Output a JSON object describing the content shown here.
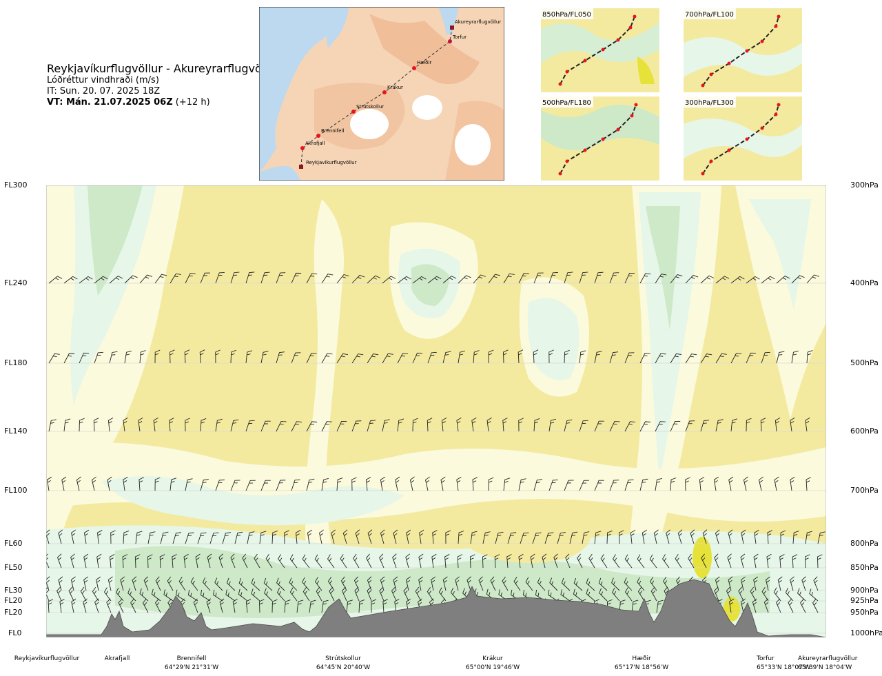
{
  "header": {
    "title": "Reykjavíkurflugvöllur - Akureyrarflugvöllur",
    "subtitle": "Lóðréttur vindhraði (m/s)",
    "it_line": "IT: Sun. 20. 07. 2025 18Z",
    "vt_bold": "VT: Mán. 21.07.2025 06Z",
    "vt_suffix": " (+12 h)"
  },
  "route_map": {
    "points": [
      {
        "name": "Akureyrarflugvöllur"
      },
      {
        "name": "Torfur"
      },
      {
        "name": "Hæðir"
      },
      {
        "name": "Krákur"
      },
      {
        "name": "Strútskollur"
      },
      {
        "name": "Brennifell"
      },
      {
        "name": "Akrafjall"
      },
      {
        "name": "Reykjavíkurflugvöllur"
      }
    ]
  },
  "mini_maps": [
    {
      "label": "850hPa/FL050"
    },
    {
      "label": "700hPa/FL100"
    },
    {
      "label": "500hPa/FL180"
    },
    {
      "label": "300hPa/FL300"
    }
  ],
  "levels_left": [
    {
      "label": "FL300"
    },
    {
      "label": "FL240"
    },
    {
      "label": "FL180"
    },
    {
      "label": "FL140"
    },
    {
      "label": "FL100"
    },
    {
      "label": "FL60"
    },
    {
      "label": "FL50"
    },
    {
      "label": "FL30"
    },
    {
      "label": "FL20"
    },
    {
      "label": "FL20"
    },
    {
      "label": "FL0"
    }
  ],
  "levels_right": [
    {
      "label": "300hPa"
    },
    {
      "label": "400hPa"
    },
    {
      "label": "500hPa"
    },
    {
      "label": "600hPa"
    },
    {
      "label": "700hPa"
    },
    {
      "label": "800hPa"
    },
    {
      "label": "850hPa"
    },
    {
      "label": "900hPa"
    },
    {
      "label": "925hPa"
    },
    {
      "label": "950hPa"
    },
    {
      "label": "1000hPa"
    }
  ],
  "locations": [
    {
      "name": "Reykjavíkurflugvöllur",
      "coord": ""
    },
    {
      "name": "Akrafjall",
      "coord": ""
    },
    {
      "name": "Brennifell",
      "coord": "64°29'N 21°31'W"
    },
    {
      "name": "Strútskollur",
      "coord": "64°45'N 20°40'W"
    },
    {
      "name": "Krákur",
      "coord": "65°00'N 19°46'W"
    },
    {
      "name": "Hæðir",
      "coord": "65°17'N 18°56'W"
    },
    {
      "name": "Torfur",
      "coord": "65°33'N 18°07'W"
    },
    {
      "name": "Akureyrarflugvöllur",
      "coord": "65°39'N 18°04'W"
    }
  ],
  "colors": {
    "updraft_weak": "#f3eaa0",
    "updraft_strong": "#e6e23a",
    "neutral": "#fbfadc",
    "downdraft_weak": "#e6f6e8",
    "downdraft_mid": "#cde9c8",
    "terrain": "#7f7f7f",
    "route": "#333333",
    "waypoint": "#e8141b",
    "sea": "#bcd9f0",
    "land": "#f5c9a5"
  },
  "chart_data": {
    "type": "heatmap",
    "title": "Lóðréttur vindhraði (m/s)",
    "xlabel": "",
    "ylabel": "",
    "x_categories": [
      "Reykjavíkurflugvöllur",
      "Akrafjall",
      "Brennifell",
      "Strútskollur",
      "Krákur",
      "Hæðir",
      "Torfur",
      "Akureyrarflugvöllur"
    ],
    "y_levels_hPa": [
      300,
      400,
      500,
      600,
      700,
      800,
      850,
      900,
      925,
      950,
      1000
    ],
    "y_levels_FL": [
      "FL300",
      "FL240",
      "FL180",
      "FL140",
      "FL100",
      "FL60",
      "FL50",
      "FL30",
      "FL20",
      "FL20",
      "FL0"
    ],
    "legend": "none",
    "grid": true,
    "notes": "Cross-section of vertical wind speed with wind barbs along route; dark grey terrain profile at bottom."
  }
}
